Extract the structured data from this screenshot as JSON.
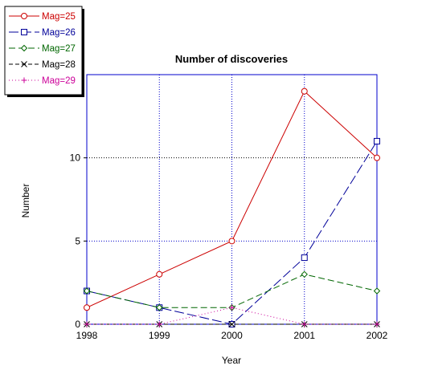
{
  "chart_data": {
    "type": "line",
    "title": "Number of discoveries",
    "xlabel": "Year",
    "ylabel": "Number",
    "x": [
      1998,
      1999,
      2000,
      2001,
      2002
    ],
    "xlim": [
      1998,
      2002
    ],
    "ylim": [
      0,
      15
    ],
    "yticks": [
      0,
      5,
      10
    ],
    "grid": true,
    "legend_position": "top-left",
    "series": [
      {
        "name": "Mag=25",
        "values": [
          1,
          3,
          5,
          14,
          10
        ],
        "color": "#cc0000",
        "marker": "circle",
        "dash": "solid"
      },
      {
        "name": "Mag=26",
        "values": [
          2,
          1,
          0,
          4,
          11
        ],
        "color": "#000099",
        "marker": "square",
        "dash": "long-dash"
      },
      {
        "name": "Mag=27",
        "values": [
          2,
          1,
          1,
          3,
          2
        ],
        "color": "#006600",
        "marker": "diamond",
        "dash": "dash"
      },
      {
        "name": "Mag=28",
        "values": [
          0,
          0,
          0,
          0,
          0
        ],
        "color": "#000000",
        "marker": "x",
        "dash": "short-dash"
      },
      {
        "name": "Mag=29",
        "values": [
          0,
          0,
          1,
          0,
          0
        ],
        "color": "#cc0099",
        "marker": "plus",
        "dash": "dot"
      }
    ]
  }
}
